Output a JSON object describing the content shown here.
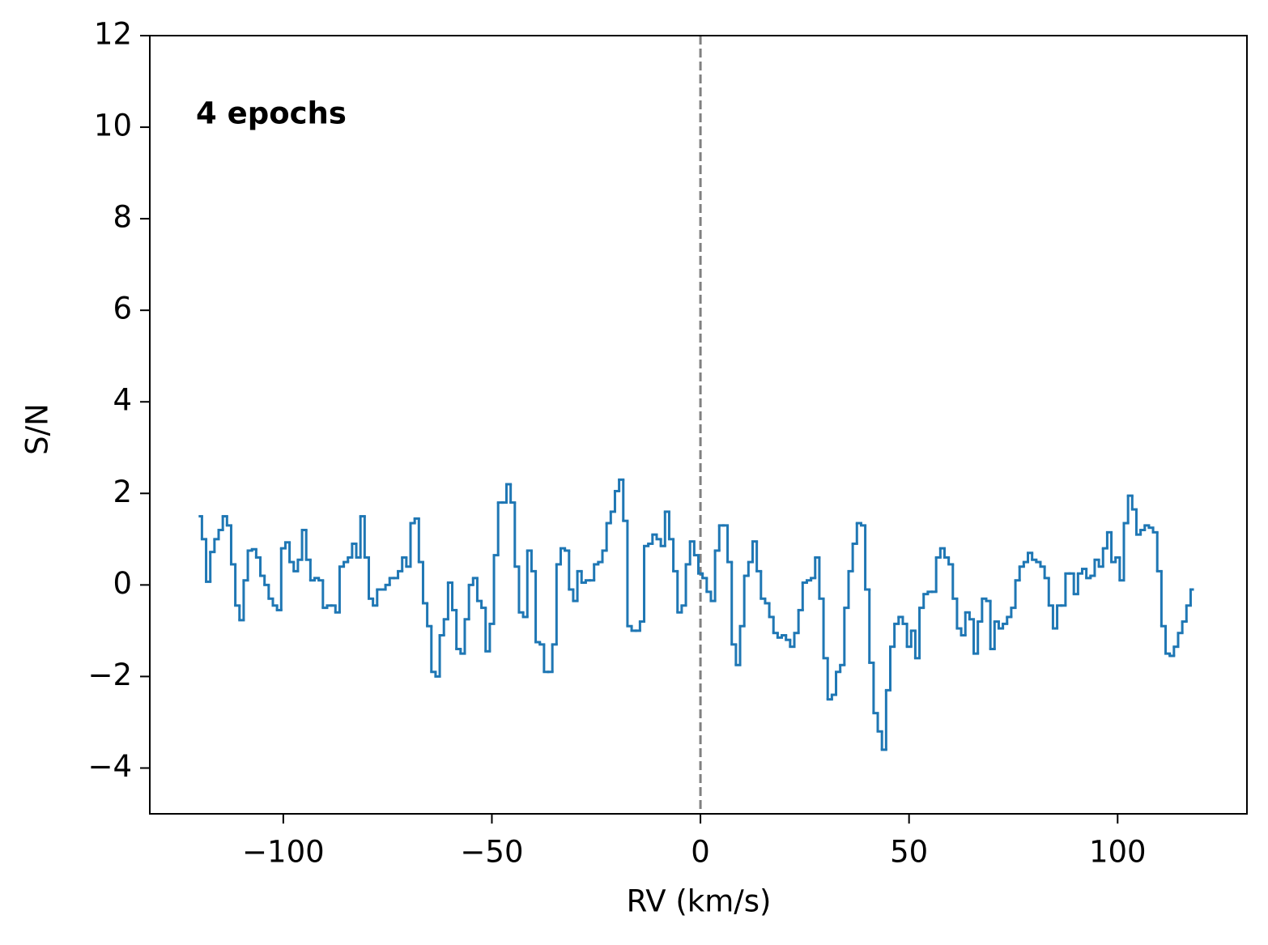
{
  "chart_data": {
    "type": "line",
    "drawstyle": "steps-mid",
    "color": "#1f77b4",
    "xlabel": "RV (km/s)",
    "ylabel": "S/N",
    "annotation": "4 epochs",
    "vline": {
      "x": 0,
      "color": "#808080",
      "style": "dashed"
    },
    "xlim": [
      -132,
      131
    ],
    "ylim": [
      -5,
      12
    ],
    "xticks": [
      {
        "value": -100,
        "label": "−100"
      },
      {
        "value": -50,
        "label": "−50"
      },
      0,
      50,
      100
    ],
    "yticks": [
      {
        "value": -4,
        "label": "−4"
      },
      {
        "value": -2,
        "label": "−2"
      },
      0,
      2,
      4,
      6,
      8,
      10,
      12
    ],
    "x": [
      -120,
      -119,
      -118,
      -117,
      -116,
      -115,
      -114,
      -113,
      -112,
      -111,
      -110,
      -109,
      -108,
      -107,
      -106,
      -105,
      -104,
      -103,
      -102,
      -101,
      -100,
      -99,
      -98,
      -97,
      -96,
      -95,
      -94,
      -93,
      -92,
      -91,
      -90,
      -89,
      -88,
      -87,
      -86,
      -85,
      -84,
      -83,
      -82,
      -81,
      -80,
      -79,
      -78,
      -77,
      -76,
      -75,
      -74,
      -73,
      -72,
      -71,
      -70,
      -69,
      -68,
      -67,
      -66,
      -65,
      -64,
      -63,
      -62,
      -61,
      -60,
      -59,
      -58,
      -57,
      -56,
      -55,
      -54,
      -53,
      -52,
      -51,
      -50,
      -49,
      -48,
      -47,
      -46,
      -45,
      -44,
      -43,
      -42,
      -41,
      -40,
      -39,
      -38,
      -37,
      -36,
      -35,
      -34,
      -33,
      -32,
      -31,
      -30,
      -29,
      -28,
      -27,
      -26,
      -25,
      -24,
      -23,
      -22,
      -21,
      -20,
      -19,
      -18,
      -17,
      -16,
      -15,
      -14,
      -13,
      -12,
      -11,
      -10,
      -9,
      -8,
      -7,
      -6,
      -5,
      -4,
      -3,
      -2,
      -1,
      0,
      1,
      2,
      3,
      4,
      5,
      6,
      7,
      8,
      9,
      10,
      11,
      12,
      13,
      14,
      15,
      16,
      17,
      18,
      19,
      20,
      21,
      22,
      23,
      24,
      25,
      26,
      27,
      28,
      29,
      30,
      31,
      32,
      33,
      34,
      35,
      36,
      37,
      38,
      39,
      40,
      41,
      42,
      43,
      44,
      45,
      46,
      47,
      48,
      49,
      50,
      51,
      52,
      53,
      54,
      55,
      56,
      57,
      58,
      59,
      60,
      61,
      62,
      63,
      64,
      65,
      66,
      67,
      68,
      69,
      70,
      71,
      72,
      73,
      74,
      75,
      76,
      77,
      78,
      79,
      80,
      81,
      82,
      83,
      84,
      85,
      86,
      87,
      88,
      89,
      90,
      91,
      92,
      93,
      94,
      95,
      96,
      97,
      98,
      99,
      100,
      101,
      102,
      103,
      104,
      105,
      106,
      107,
      108,
      109,
      110,
      111,
      112,
      113,
      114,
      115,
      116,
      117,
      118
    ],
    "values": [
      1.5,
      1.0,
      0.07,
      0.72,
      1.0,
      1.2,
      1.5,
      1.3,
      0.45,
      -0.45,
      -0.77,
      0.1,
      0.75,
      0.78,
      0.6,
      0.2,
      0.0,
      -0.3,
      -0.45,
      -0.55,
      0.8,
      0.93,
      0.5,
      0.3,
      0.55,
      1.2,
      0.55,
      0.1,
      0.15,
      0.1,
      -0.5,
      -0.45,
      -0.45,
      -0.6,
      0.4,
      0.5,
      0.6,
      0.9,
      0.6,
      1.5,
      0.6,
      -0.3,
      -0.45,
      -0.1,
      -0.1,
      0.0,
      0.15,
      0.15,
      0.3,
      0.6,
      0.4,
      1.35,
      1.45,
      0.5,
      -0.4,
      -0.9,
      -1.9,
      -2.0,
      -1.1,
      -0.75,
      0.05,
      -0.55,
      -1.4,
      -1.5,
      -0.75,
      0.0,
      0.15,
      -0.35,
      -0.5,
      -1.45,
      -0.85,
      0.65,
      1.8,
      1.8,
      2.2,
      1.8,
      0.4,
      -0.6,
      -0.7,
      0.75,
      0.3,
      -1.25,
      -1.3,
      -1.9,
      -1.9,
      -1.3,
      0.45,
      0.8,
      0.75,
      -0.1,
      -0.35,
      0.3,
      0.05,
      0.1,
      0.1,
      0.45,
      0.5,
      0.75,
      1.35,
      1.6,
      2.05,
      2.3,
      1.4,
      -0.9,
      -1.0,
      -1.0,
      -0.8,
      0.85,
      0.9,
      1.1,
      1.0,
      0.85,
      1.6,
      1.0,
      0.3,
      -0.6,
      -0.45,
      0.45,
      0.95,
      0.65,
      0.25,
      0.15,
      -0.15,
      -0.35,
      0.75,
      1.3,
      1.3,
      0.5,
      -1.3,
      -1.75,
      -0.9,
      0.2,
      0.5,
      0.95,
      0.3,
      -0.3,
      -0.4,
      -0.7,
      -1.05,
      -1.15,
      -1.1,
      -1.2,
      -1.35,
      -1.05,
      -0.55,
      0.05,
      0.1,
      0.15,
      0.6,
      -0.3,
      -1.6,
      -2.5,
      -2.4,
      -1.9,
      -1.75,
      -0.5,
      0.3,
      0.9,
      1.35,
      1.3,
      -0.1,
      -1.7,
      -2.8,
      -3.2,
      -3.6,
      -2.3,
      -1.35,
      -0.85,
      -0.7,
      -0.85,
      -1.35,
      -1.0,
      -1.6,
      -0.5,
      -0.2,
      -0.15,
      -0.15,
      0.6,
      0.8,
      0.6,
      0.45,
      -0.3,
      -0.95,
      -1.1,
      -0.6,
      -0.75,
      -1.5,
      -0.8,
      -0.3,
      -0.35,
      -1.4,
      -0.8,
      -0.95,
      -0.85,
      -0.7,
      -0.5,
      0.1,
      0.4,
      0.5,
      0.7,
      0.55,
      0.5,
      0.4,
      0.15,
      -0.45,
      -0.95,
      -0.45,
      -0.45,
      0.25,
      0.25,
      -0.2,
      0.25,
      0.35,
      0.15,
      0.2,
      0.55,
      0.4,
      0.8,
      1.15,
      0.5,
      0.6,
      0.1,
      1.35,
      1.95,
      1.65,
      1.1,
      1.2,
      1.3,
      1.25,
      1.15,
      0.3,
      -0.9,
      -1.5,
      -1.55,
      -1.35,
      -1.05,
      -0.8,
      -0.45,
      -0.1
    ]
  }
}
